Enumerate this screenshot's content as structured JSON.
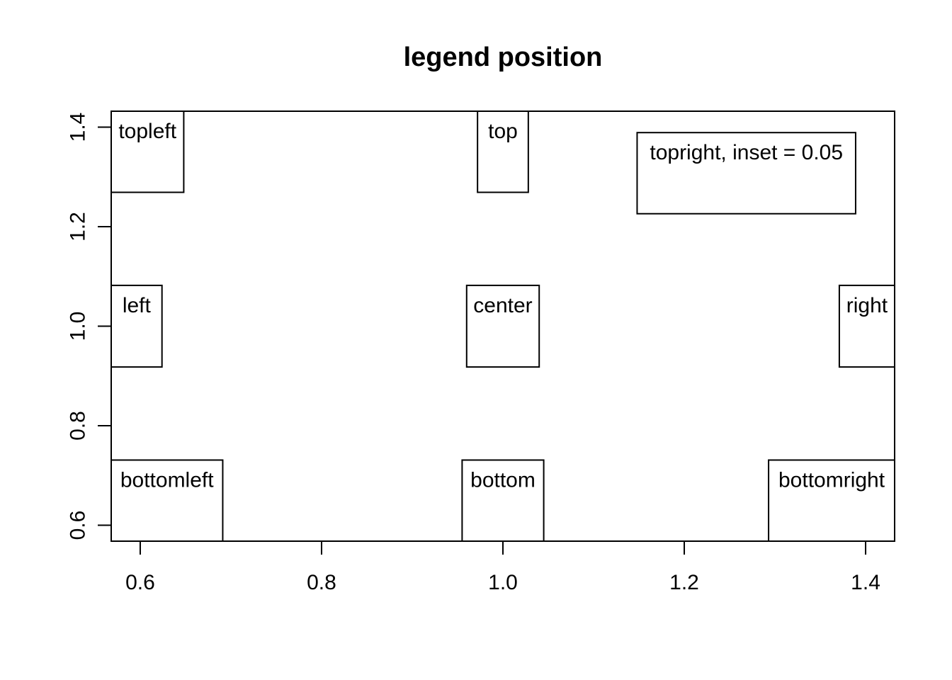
{
  "chart_data": {
    "type": "scatter",
    "title": "legend position",
    "xlabel": "",
    "ylabel": "",
    "xlim": [
      0.568,
      1.432
    ],
    "ylim": [
      0.568,
      1.432
    ],
    "x_ticks": [
      {
        "value": 0.6,
        "label": "0.6"
      },
      {
        "value": 0.8,
        "label": "0.8"
      },
      {
        "value": 1.0,
        "label": "1.0"
      },
      {
        "value": 1.2,
        "label": "1.2"
      },
      {
        "value": 1.4,
        "label": "1.4"
      }
    ],
    "y_ticks": [
      {
        "value": 0.6,
        "label": "0.6"
      },
      {
        "value": 0.8,
        "label": "0.8"
      },
      {
        "value": 1.0,
        "label": "1.0"
      },
      {
        "value": 1.2,
        "label": "1.2"
      },
      {
        "value": 1.4,
        "label": "1.4"
      }
    ],
    "grid": false,
    "legends": [
      {
        "label": "topleft",
        "x0": 0.568,
        "x1": 0.648,
        "y0": 1.269,
        "y1": 1.432
      },
      {
        "label": "top",
        "x0": 0.972,
        "x1": 1.028,
        "y0": 1.269,
        "y1": 1.432
      },
      {
        "label": "topright, inset = 0.05",
        "x0": 1.148,
        "x1": 1.389,
        "y0": 1.226,
        "y1": 1.389
      },
      {
        "label": "left",
        "x0": 0.568,
        "x1": 0.624,
        "y0": 0.918,
        "y1": 1.082
      },
      {
        "label": "center",
        "x0": 0.96,
        "x1": 1.04,
        "y0": 0.918,
        "y1": 1.082
      },
      {
        "label": "right",
        "x0": 1.371,
        "x1": 1.432,
        "y0": 0.918,
        "y1": 1.082
      },
      {
        "label": "bottomleft",
        "x0": 0.568,
        "x1": 0.691,
        "y0": 0.568,
        "y1": 0.731
      },
      {
        "label": "bottom",
        "x0": 0.955,
        "x1": 1.045,
        "y0": 0.568,
        "y1": 0.731
      },
      {
        "label": "bottomright",
        "x0": 1.293,
        "x1": 1.432,
        "y0": 0.568,
        "y1": 0.731
      }
    ]
  }
}
